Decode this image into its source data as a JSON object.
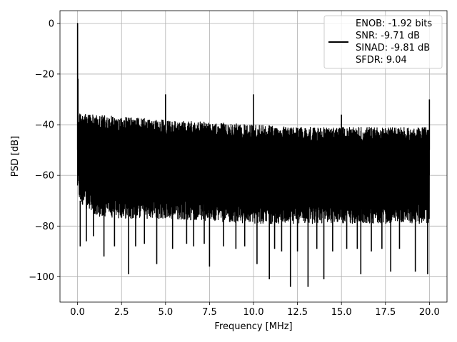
{
  "chart_data": {
    "type": "line",
    "title": "",
    "xlabel": "Frequency [MHz]",
    "ylabel": "PSD [dB]",
    "xlim": [
      -1.0,
      21.0
    ],
    "ylim": [
      -110,
      5
    ],
    "xticks": [
      0.0,
      2.5,
      5.0,
      7.5,
      10.0,
      12.5,
      15.0,
      17.5,
      20.0
    ],
    "xtick_labels": [
      "0.0",
      "2.5",
      "5.0",
      "7.5",
      "10.0",
      "12.5",
      "15.0",
      "17.5",
      "20.0"
    ],
    "yticks": [
      0,
      -20,
      -40,
      -60,
      -80,
      -100
    ],
    "ytick_labels": [
      "0",
      "−20",
      "−40",
      "−60",
      "−80",
      "−100"
    ],
    "grid": true,
    "legend": {
      "placement": "top-right",
      "entries": [
        "ENOB: -1.92 bits",
        "SNR: -9.71 dB",
        "SINAD: -9.81 dB",
        "SFDR: 9.04"
      ]
    },
    "series": [
      {
        "color": "#000000",
        "noise_envelope": {
          "upper": [
            [
              0.05,
              -35
            ],
            [
              1.0,
              -36
            ],
            [
              2.5,
              -37
            ],
            [
              5.0,
              -38
            ],
            [
              7.5,
              -39
            ],
            [
              10.0,
              -40
            ],
            [
              12.5,
              -41
            ],
            [
              15.0,
              -41
            ],
            [
              17.5,
              -41
            ],
            [
              20.0,
              -41
            ]
          ],
          "lower": [
            [
              0.05,
              -70
            ],
            [
              1.0,
              -76
            ],
            [
              2.5,
              -77
            ],
            [
              5.0,
              -77
            ],
            [
              7.5,
              -78
            ],
            [
              10.0,
              -79
            ],
            [
              12.5,
              -79
            ],
            [
              15.0,
              -79
            ],
            [
              17.5,
              -79
            ],
            [
              20.0,
              -79
            ]
          ]
        },
        "peaks": [
          {
            "x": 0.0,
            "y": 0
          },
          {
            "x": 0.02,
            "y": -22
          },
          {
            "x": 5.0,
            "y": -28
          },
          {
            "x": 10.0,
            "y": -28
          },
          {
            "x": 15.0,
            "y": -36
          },
          {
            "x": 20.0,
            "y": -30
          }
        ],
        "dips": [
          {
            "x": 0.15,
            "y": -88
          },
          {
            "x": 0.5,
            "y": -86
          },
          {
            "x": 0.9,
            "y": -84
          },
          {
            "x": 1.5,
            "y": -92
          },
          {
            "x": 2.1,
            "y": -88
          },
          {
            "x": 2.9,
            "y": -99
          },
          {
            "x": 3.3,
            "y": -88
          },
          {
            "x": 3.8,
            "y": -87
          },
          {
            "x": 4.5,
            "y": -95
          },
          {
            "x": 5.4,
            "y": -89
          },
          {
            "x": 6.2,
            "y": -87
          },
          {
            "x": 6.6,
            "y": -88
          },
          {
            "x": 7.2,
            "y": -87
          },
          {
            "x": 7.5,
            "y": -96
          },
          {
            "x": 8.3,
            "y": -88
          },
          {
            "x": 9.0,
            "y": -89
          },
          {
            "x": 9.5,
            "y": -88
          },
          {
            "x": 10.2,
            "y": -95
          },
          {
            "x": 10.9,
            "y": -101
          },
          {
            "x": 11.2,
            "y": -89
          },
          {
            "x": 11.6,
            "y": -90
          },
          {
            "x": 12.1,
            "y": -104
          },
          {
            "x": 12.5,
            "y": -90
          },
          {
            "x": 13.1,
            "y": -104
          },
          {
            "x": 13.6,
            "y": -89
          },
          {
            "x": 14.0,
            "y": -101
          },
          {
            "x": 14.5,
            "y": -90
          },
          {
            "x": 15.3,
            "y": -89
          },
          {
            "x": 15.9,
            "y": -89
          },
          {
            "x": 16.1,
            "y": -99
          },
          {
            "x": 16.7,
            "y": -90
          },
          {
            "x": 17.3,
            "y": -89
          },
          {
            "x": 17.8,
            "y": -98
          },
          {
            "x": 18.3,
            "y": -89
          },
          {
            "x": 19.2,
            "y": -98
          },
          {
            "x": 19.9,
            "y": -99
          }
        ]
      }
    ]
  }
}
